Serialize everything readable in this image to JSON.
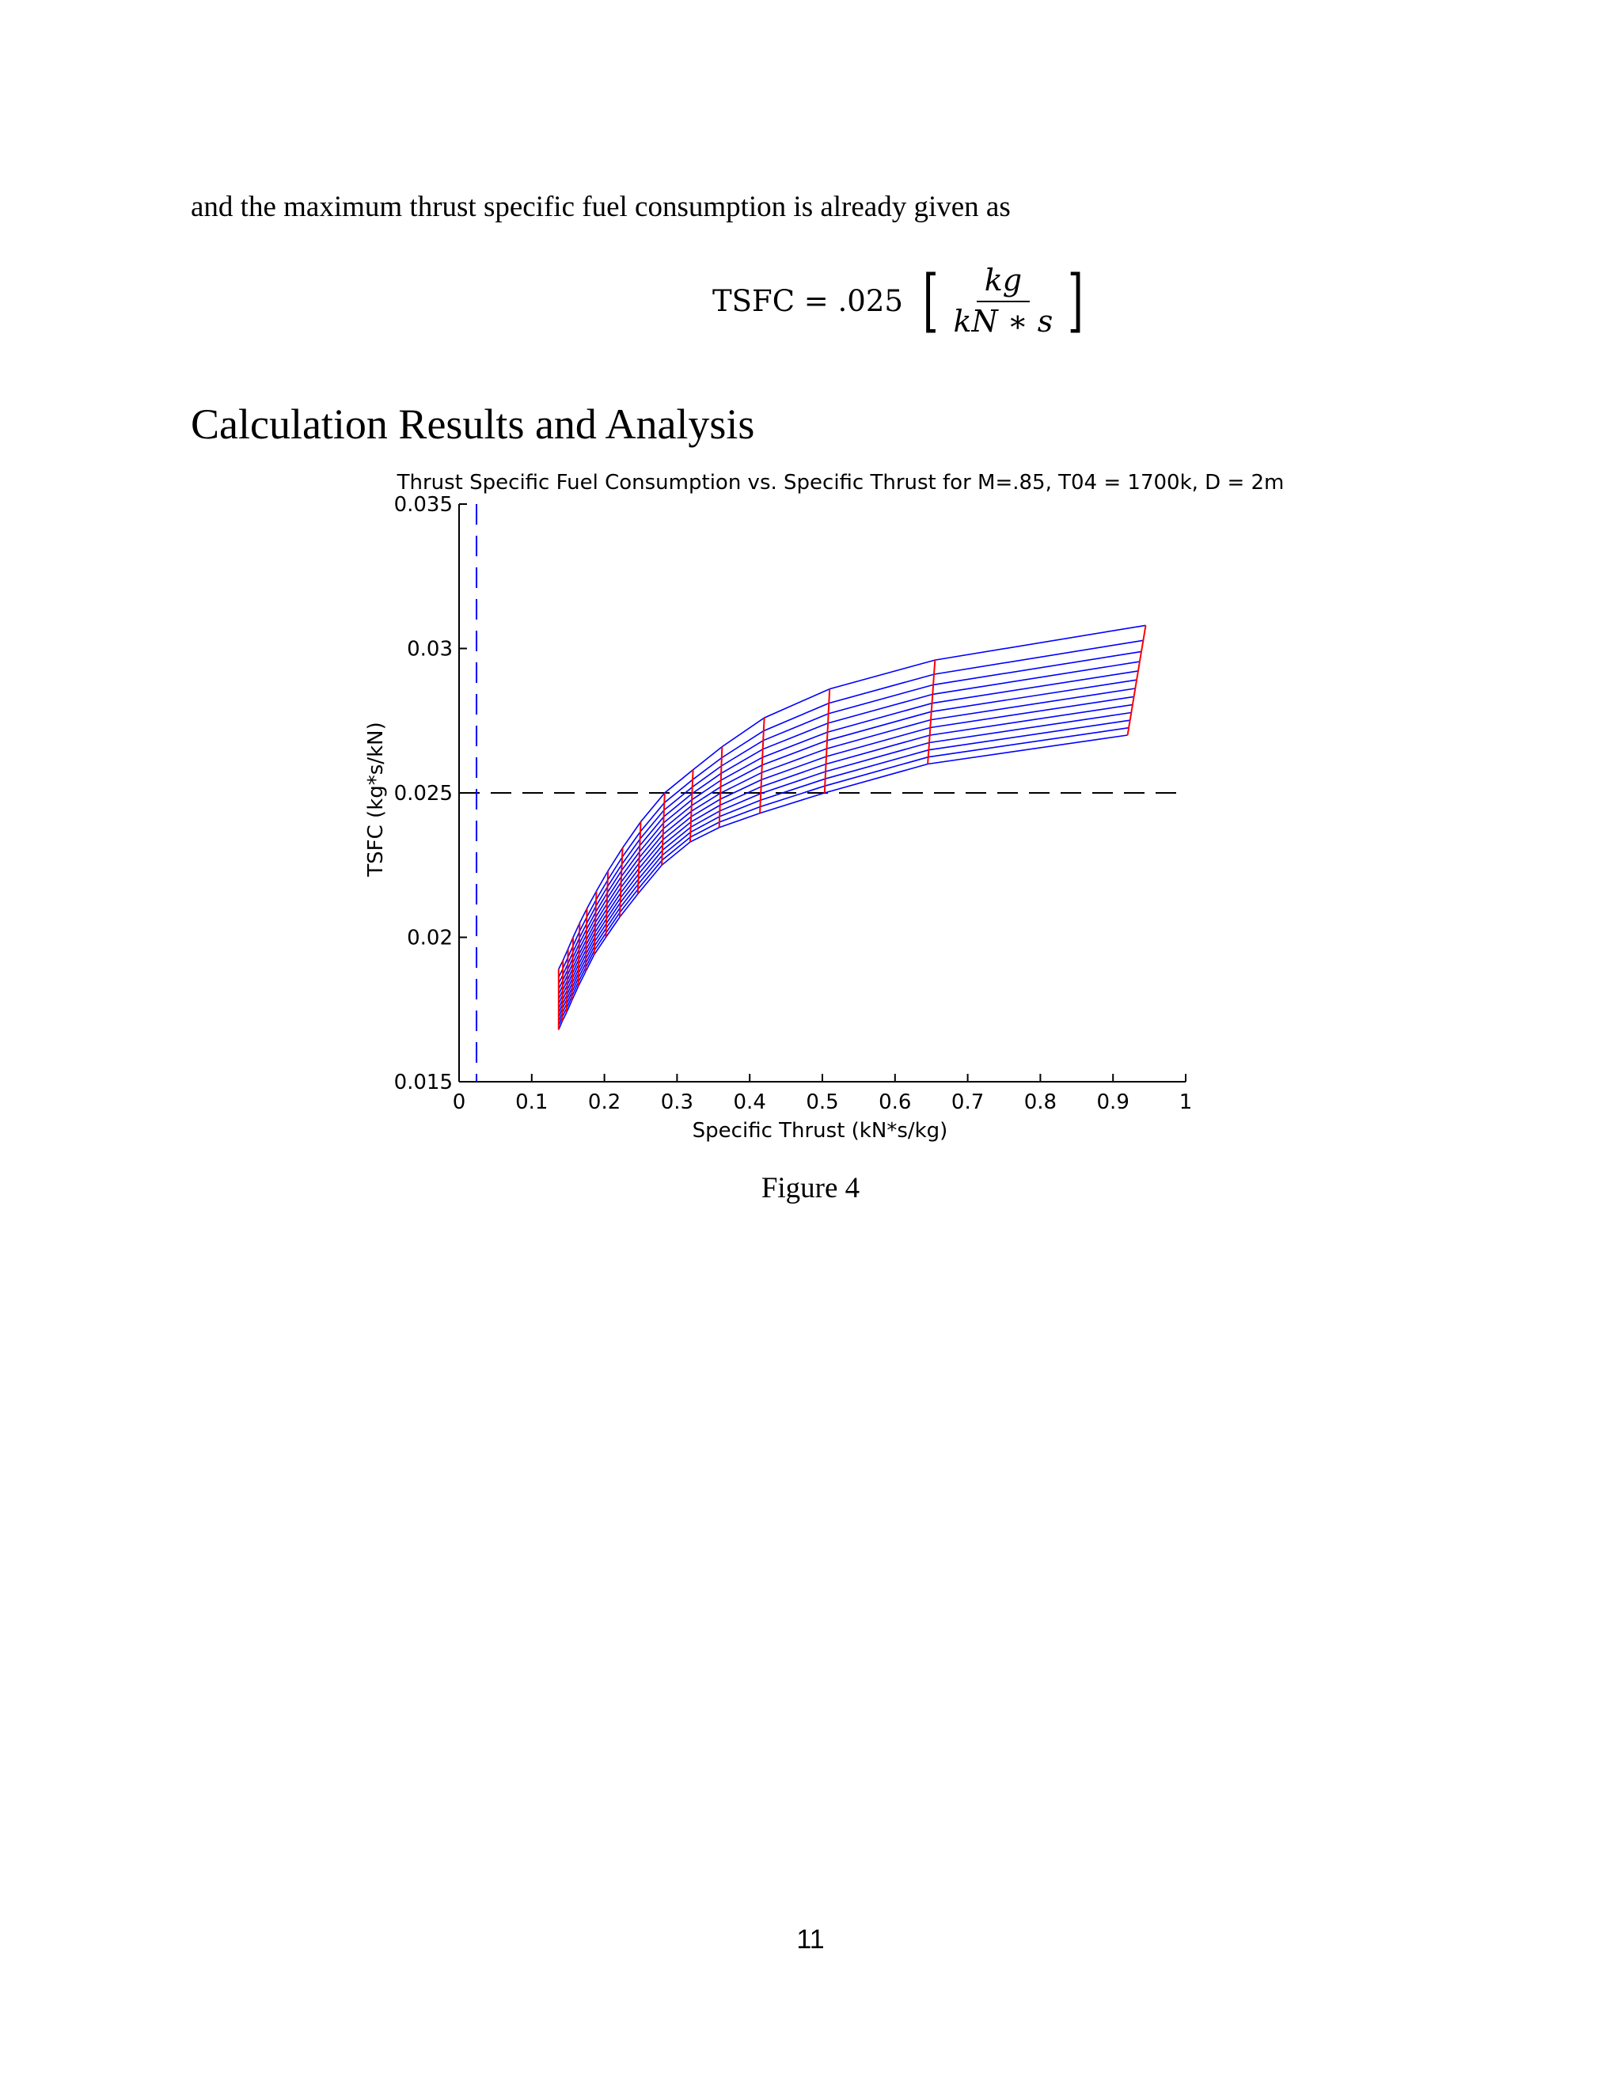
{
  "intro_text": "and the maximum thrust specific fuel consumption is already given as",
  "equation": {
    "lhs": "TSFC = .025",
    "numerator": "kg",
    "denominator": "kN ∗ s",
    "left_bracket": "[",
    "right_bracket": "]"
  },
  "section_heading": "Calculation Results and Analysis",
  "figure_caption": "Figure 4",
  "page_number": "11",
  "chart_data": {
    "type": "line",
    "title": "Thrust Specific Fuel Consumption vs. Specific Thrust for M=.85, T04 = 1700k, D = 2m",
    "xlabel": "Specific Thrust (kN*s/kg)",
    "ylabel": "TSFC (kg*s/kN)",
    "xlim": [
      0,
      1
    ],
    "ylim": [
      0.015,
      0.035
    ],
    "xticks": [
      0,
      0.1,
      0.2,
      0.3,
      0.4,
      0.5,
      0.6,
      0.7,
      0.8,
      0.9,
      1
    ],
    "xtick_labels": [
      "0",
      "0.1",
      "0.2",
      "0.3",
      "0.4",
      "0.5",
      "0.6",
      "0.7",
      "0.8",
      "0.9",
      "1"
    ],
    "yticks": [
      0.015,
      0.02,
      0.025,
      0.03,
      0.035
    ],
    "ytick_labels": [
      "0.015",
      "0.02",
      "0.025",
      "0.03",
      "0.035"
    ],
    "grid": false,
    "reference_lines": [
      {
        "orientation": "horizontal",
        "value": 0.025,
        "color": "#000000",
        "style": "dashed"
      },
      {
        "orientation": "vertical",
        "value": 0.024,
        "color": "#0000ff",
        "style": "dashed"
      }
    ],
    "carpet": {
      "blue_line_color": "#0000ff",
      "red_line_color": "#ff0000",
      "red_lines": [
        {
          "x_top": 0.137,
          "y_top": 0.0189,
          "x_bottom": 0.137,
          "y_bottom": 0.0168
        },
        {
          "x_top": 0.143,
          "y_top": 0.0192,
          "x_bottom": 0.142,
          "y_bottom": 0.0171
        },
        {
          "x_top": 0.15,
          "y_top": 0.0196,
          "x_bottom": 0.148,
          "y_bottom": 0.0174
        },
        {
          "x_top": 0.157,
          "y_top": 0.02,
          "x_bottom": 0.155,
          "y_bottom": 0.0178
        },
        {
          "x_top": 0.166,
          "y_top": 0.0205,
          "x_bottom": 0.164,
          "y_bottom": 0.0183
        },
        {
          "x_top": 0.176,
          "y_top": 0.021,
          "x_bottom": 0.174,
          "y_bottom": 0.0188
        },
        {
          "x_top": 0.189,
          "y_top": 0.0216,
          "x_bottom": 0.186,
          "y_bottom": 0.0194
        },
        {
          "x_top": 0.205,
          "y_top": 0.0223,
          "x_bottom": 0.202,
          "y_bottom": 0.02
        },
        {
          "x_top": 0.225,
          "y_top": 0.0231,
          "x_bottom": 0.221,
          "y_bottom": 0.0207
        },
        {
          "x_top": 0.25,
          "y_top": 0.024,
          "x_bottom": 0.246,
          "y_bottom": 0.0215
        },
        {
          "x_top": 0.283,
          "y_top": 0.025,
          "x_bottom": 0.279,
          "y_bottom": 0.0225
        },
        {
          "x_top": 0.322,
          "y_top": 0.0258,
          "x_bottom": 0.318,
          "y_bottom": 0.0233
        },
        {
          "x_top": 0.362,
          "y_top": 0.0266,
          "x_bottom": 0.358,
          "y_bottom": 0.0238
        },
        {
          "x_top": 0.42,
          "y_top": 0.0276,
          "x_bottom": 0.414,
          "y_bottom": 0.0243
        },
        {
          "x_top": 0.51,
          "y_top": 0.0286,
          "x_bottom": 0.503,
          "y_bottom": 0.025
        },
        {
          "x_top": 0.655,
          "y_top": 0.0296,
          "x_bottom": 0.645,
          "y_bottom": 0.026
        },
        {
          "x_top": 0.945,
          "y_top": 0.0308,
          "x_bottom": 0.92,
          "y_bottom": 0.027
        }
      ],
      "blue_line_count": 13,
      "blue_line_spacing_bias": 0.8
    }
  }
}
